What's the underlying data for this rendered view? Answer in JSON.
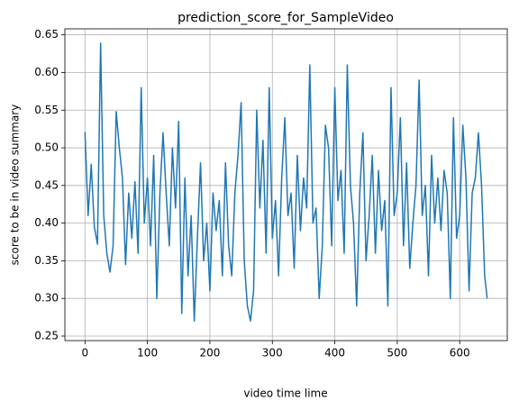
{
  "chart_data": {
    "type": "line",
    "title": "prediction_score_for_SampleVideo",
    "xlabel": "video time lime",
    "ylabel": "score to be in video summary",
    "x": [
      0,
      5,
      10,
      15,
      20,
      25,
      30,
      35,
      40,
      45,
      50,
      55,
      60,
      65,
      70,
      75,
      80,
      85,
      90,
      95,
      100,
      105,
      110,
      115,
      120,
      125,
      130,
      135,
      140,
      145,
      150,
      155,
      160,
      165,
      170,
      175,
      180,
      185,
      190,
      195,
      200,
      205,
      210,
      215,
      220,
      225,
      230,
      235,
      240,
      245,
      250,
      255,
      260,
      265,
      270,
      275,
      280,
      285,
      290,
      295,
      300,
      305,
      310,
      315,
      320,
      325,
      330,
      335,
      340,
      345,
      350,
      355,
      360,
      365,
      370,
      375,
      380,
      385,
      390,
      395,
      400,
      405,
      410,
      415,
      420,
      425,
      430,
      435,
      440,
      445,
      450,
      455,
      460,
      465,
      470,
      475,
      480,
      485,
      490,
      495,
      500,
      505,
      510,
      515,
      520,
      525,
      530,
      535,
      540,
      545,
      550,
      555,
      560,
      565,
      570,
      575,
      580,
      585,
      590,
      595,
      600,
      605,
      610,
      615,
      620,
      625,
      630,
      635,
      640,
      644
    ],
    "series": [
      {
        "name": "prediction_score",
        "color": "#1f77b4",
        "values": [
          0.521,
          0.41,
          0.478,
          0.395,
          0.372,
          0.639,
          0.41,
          0.36,
          0.335,
          0.37,
          0.548,
          0.5,
          0.46,
          0.345,
          0.44,
          0.38,
          0.455,
          0.36,
          0.58,
          0.4,
          0.46,
          0.37,
          0.49,
          0.3,
          0.44,
          0.52,
          0.44,
          0.37,
          0.5,
          0.42,
          0.535,
          0.28,
          0.46,
          0.33,
          0.41,
          0.27,
          0.38,
          0.48,
          0.35,
          0.4,
          0.31,
          0.44,
          0.39,
          0.43,
          0.33,
          0.48,
          0.37,
          0.33,
          0.44,
          0.49,
          0.56,
          0.35,
          0.29,
          0.27,
          0.31,
          0.55,
          0.42,
          0.51,
          0.36,
          0.58,
          0.38,
          0.43,
          0.33,
          0.46,
          0.54,
          0.41,
          0.44,
          0.34,
          0.49,
          0.39,
          0.46,
          0.42,
          0.61,
          0.4,
          0.42,
          0.3,
          0.37,
          0.53,
          0.5,
          0.37,
          0.58,
          0.43,
          0.47,
          0.36,
          0.61,
          0.45,
          0.4,
          0.29,
          0.44,
          0.52,
          0.35,
          0.41,
          0.49,
          0.36,
          0.47,
          0.39,
          0.43,
          0.29,
          0.58,
          0.41,
          0.44,
          0.54,
          0.37,
          0.48,
          0.34,
          0.4,
          0.45,
          0.59,
          0.41,
          0.45,
          0.33,
          0.49,
          0.4,
          0.46,
          0.39,
          0.47,
          0.44,
          0.3,
          0.54,
          0.38,
          0.41,
          0.53,
          0.46,
          0.31,
          0.44,
          0.46,
          0.52,
          0.45,
          0.33,
          0.3
        ]
      }
    ],
    "xlim": [
      -32.2,
      676.2
    ],
    "ylim": [
      0.244,
      0.658
    ],
    "xticks": [
      0,
      100,
      200,
      300,
      400,
      500,
      600
    ],
    "yticks": [
      {
        "value": 0.25,
        "label": "0.25"
      },
      {
        "value": 0.3,
        "label": "0.30"
      },
      {
        "value": 0.35,
        "label": "0.35"
      },
      {
        "value": 0.4,
        "label": "0.40"
      },
      {
        "value": 0.45,
        "label": "0.45"
      },
      {
        "value": 0.5,
        "label": "0.50"
      },
      {
        "value": 0.55,
        "label": "0.55"
      },
      {
        "value": 0.6,
        "label": "0.60"
      },
      {
        "value": 0.65,
        "label": "0.65"
      }
    ],
    "grid": true
  }
}
